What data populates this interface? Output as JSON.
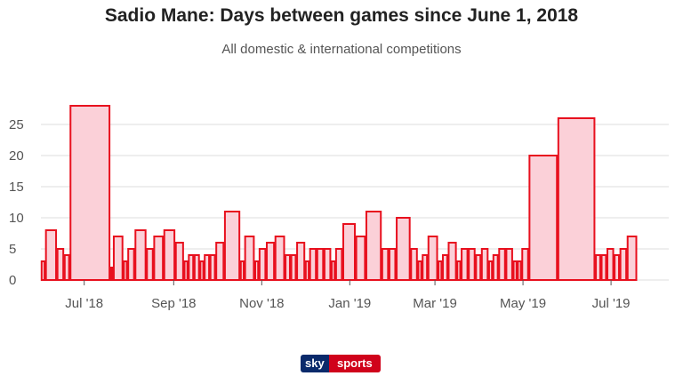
{
  "title": "Sadio Mane: Days between games since June 1, 2018",
  "subtitle": "All domestic & international competitions",
  "brand": {
    "part1": "sky",
    "part2": "sports"
  },
  "colors": {
    "bar_fill": "#fbd0d8",
    "bar_stroke": "#e8101e",
    "grid": "#dddddd",
    "axis_text": "#555555"
  },
  "chart_data": {
    "type": "bar",
    "x_axis_type": "date",
    "ylim": [
      0,
      30
    ],
    "yticks": [
      0,
      5,
      10,
      15,
      20,
      25
    ],
    "xlim": [
      "2018-06-01",
      "2019-08-10"
    ],
    "xticks": [
      {
        "date": "2018-07-01",
        "label": "Jul '18"
      },
      {
        "date": "2018-09-01",
        "label": "Sep '18"
      },
      {
        "date": "2018-11-01",
        "label": "Nov '18"
      },
      {
        "date": "2019-01-01",
        "label": "Jan '19"
      },
      {
        "date": "2019-03-01",
        "label": "Mar '19"
      },
      {
        "date": "2019-05-01",
        "label": "May '19"
      },
      {
        "date": "2019-07-01",
        "label": "Jul '19"
      }
    ],
    "grid": true,
    "values": [
      3,
      8,
      5,
      4,
      28,
      2,
      7,
      3,
      5,
      8,
      5,
      7,
      8,
      6,
      3,
      4,
      4,
      3,
      4,
      4,
      6,
      11,
      3,
      7,
      3,
      5,
      6,
      7,
      4,
      4,
      6,
      3,
      5,
      5,
      5,
      3,
      5,
      9,
      7,
      11,
      5,
      5,
      10,
      5,
      3,
      4,
      7,
      3,
      4,
      6,
      3,
      5,
      5,
      4,
      5,
      3,
      4,
      5,
      5,
      3,
      3,
      5,
      20,
      26,
      4,
      4,
      5,
      4,
      5,
      7
    ]
  }
}
